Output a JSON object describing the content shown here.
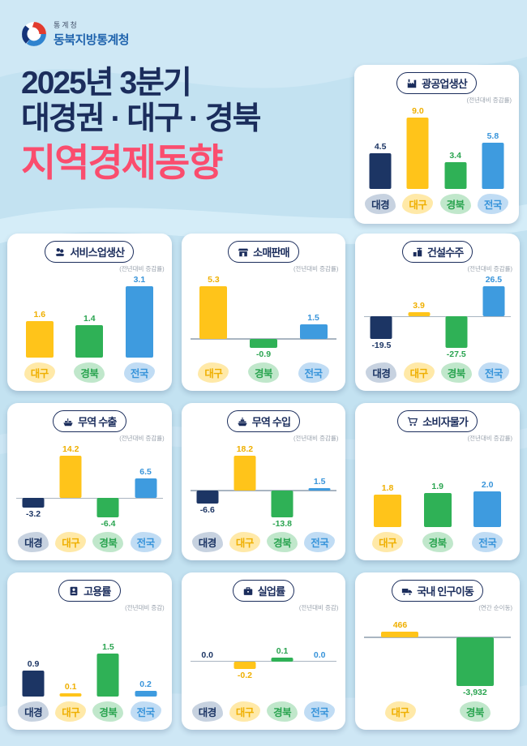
{
  "page": {
    "background": "#c3e2f1",
    "logo": {
      "agency_small": "통계청",
      "agency": "동북지방통계청"
    },
    "title_lines": [
      "2025년 3분기",
      "대경권 · 대구 · 경북",
      "지역경제동향"
    ],
    "title_colors": {
      "main": "#1b2d5c",
      "accent": "#fa4d6e"
    }
  },
  "region_colors": {
    "대경": {
      "bar": "#1c3564",
      "text": "#1c3564",
      "blob": "#c7d2e0"
    },
    "대구": {
      "bar": "#ffc41a",
      "text": "#efaf00",
      "blob": "#ffe9a8"
    },
    "경북": {
      "bar": "#2fb156",
      "text": "#2aa450",
      "blob": "#c0e7cb"
    },
    "전국": {
      "bar": "#3e9bdf",
      "text": "#3894da",
      "blob": "#c0dcf4"
    }
  },
  "chart_data": [
    {
      "type": "bar",
      "title": "광공업생산",
      "subtitle": "(전년대비 증감률)",
      "icon": "factory-icon",
      "categories": [
        "대경",
        "대구",
        "경북",
        "전국"
      ],
      "values": [
        4.5,
        9.0,
        3.4,
        5.8
      ],
      "value_labels": [
        "4.5",
        "9.0",
        "3.4",
        "5.8"
      ]
    },
    {
      "type": "bar",
      "title": "서비스업생산",
      "subtitle": "(전년대비 증감률)",
      "icon": "hand-coins-icon",
      "categories": [
        "대구",
        "경북",
        "전국"
      ],
      "values": [
        1.6,
        1.4,
        3.1
      ],
      "value_labels": [
        "1.6",
        "1.4",
        "3.1"
      ]
    },
    {
      "type": "bar",
      "title": "소매판매",
      "subtitle": "(전년대비 증감률)",
      "icon": "storefront-icon",
      "categories": [
        "대구",
        "경북",
        "전국"
      ],
      "values": [
        5.3,
        -0.9,
        1.5
      ],
      "value_labels": [
        "5.3",
        "-0.9",
        "1.5"
      ]
    },
    {
      "type": "bar",
      "title": "건설수주",
      "subtitle": "(전년대비 증감률)",
      "icon": "construction-icon",
      "categories": [
        "대경",
        "대구",
        "경북",
        "전국"
      ],
      "values": [
        -19.5,
        3.9,
        -27.5,
        26.5
      ],
      "value_labels": [
        "-19.5",
        "3.9",
        "-27.5",
        "26.5"
      ]
    },
    {
      "type": "bar",
      "title": "무역 수출",
      "subtitle": "(전년대비 증감률)",
      "icon": "ship-export-icon",
      "categories": [
        "대경",
        "대구",
        "경북",
        "전국"
      ],
      "values": [
        -3.2,
        14.2,
        -6.4,
        6.5
      ],
      "value_labels": [
        "-3.2",
        "14.2",
        "-6.4",
        "6.5"
      ]
    },
    {
      "type": "bar",
      "title": "무역 수입",
      "subtitle": "(전년대비 증감률)",
      "icon": "ship-import-icon",
      "categories": [
        "대경",
        "대구",
        "경북",
        "전국"
      ],
      "values": [
        -6.6,
        18.2,
        -13.8,
        1.5
      ],
      "value_labels": [
        "-6.6",
        "18.2",
        "-13.8",
        "1.5"
      ]
    },
    {
      "type": "bar",
      "title": "소비자물가",
      "subtitle": "(전년대비 증감률)",
      "icon": "cart-icon",
      "categories": [
        "대구",
        "경북",
        "전국"
      ],
      "values": [
        1.8,
        1.9,
        2.0
      ],
      "value_labels": [
        "1.8",
        "1.9",
        "2.0"
      ],
      "ylim": [
        0,
        4
      ]
    },
    {
      "type": "bar",
      "title": "고용률",
      "subtitle": "(전년대비 증감)",
      "icon": "employment-icon",
      "categories": [
        "대경",
        "대구",
        "경북",
        "전국"
      ],
      "values": [
        0.9,
        0.1,
        1.5,
        0.2
      ],
      "value_labels": [
        "0.9",
        "0.1",
        "1.5",
        "0.2"
      ],
      "ylim": [
        0,
        2.5
      ]
    },
    {
      "type": "bar",
      "title": "실업률",
      "subtitle": "(전년대비 증감)",
      "icon": "briefcase-icon",
      "categories": [
        "대경",
        "대구",
        "경북",
        "전국"
      ],
      "values": [
        0.0,
        -0.2,
        0.1,
        0.0
      ],
      "value_labels": [
        "0.0",
        "-0.2",
        "0.1",
        "0.0"
      ],
      "ylim": [
        -0.7,
        1
      ]
    },
    {
      "type": "bar",
      "title": "국내 인구이동",
      "subtitle": "(연간 순이동)",
      "icon": "truck-icon",
      "categories": [
        "대구",
        "경북"
      ],
      "values": [
        466,
        -3932
      ],
      "value_labels": [
        "466",
        "-3,932"
      ],
      "ylim": [
        -4000,
        1000
      ]
    }
  ]
}
